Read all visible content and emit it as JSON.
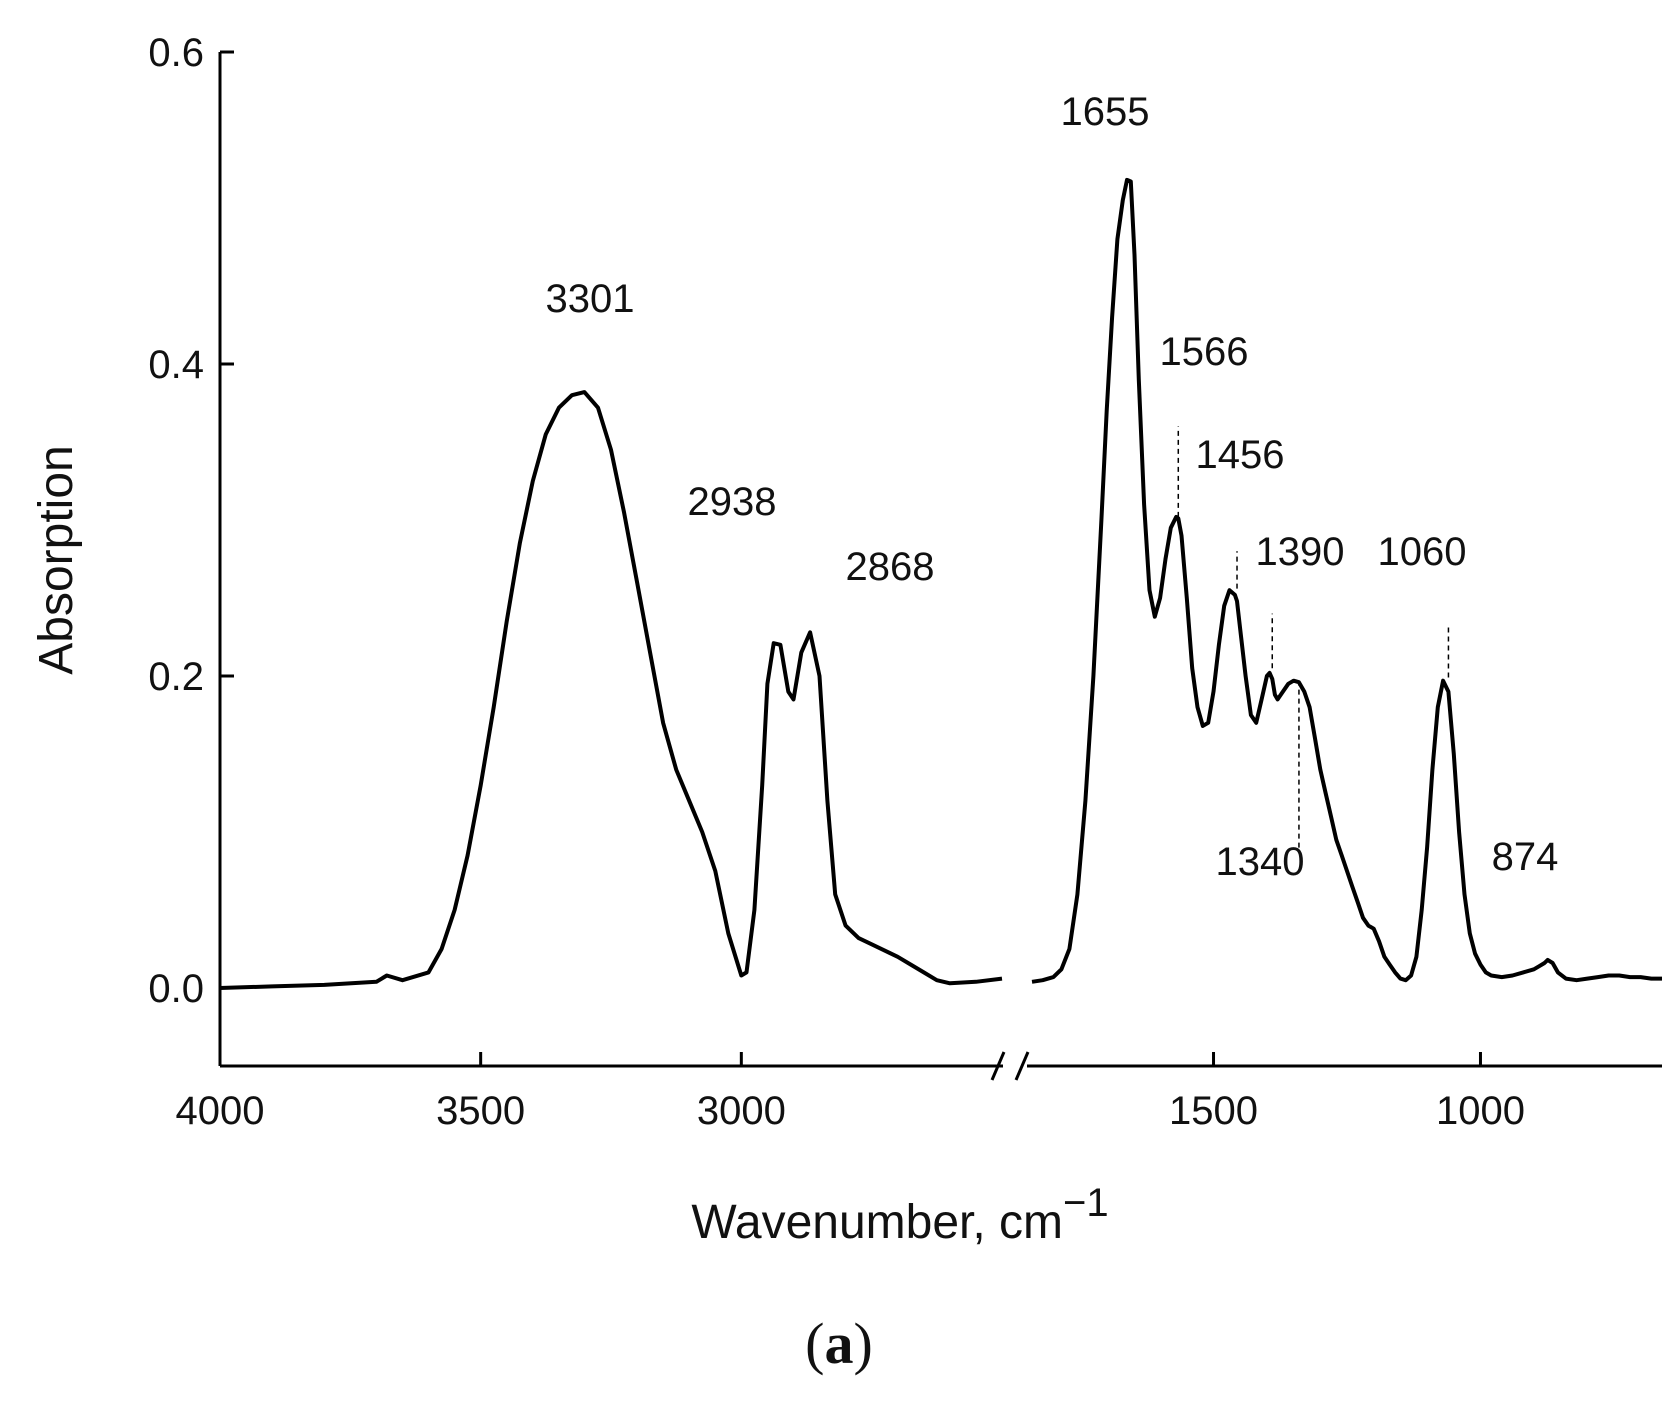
{
  "chart_data": {
    "type": "line",
    "xlabel": "Wavenumber, cm",
    "xlabel_superscript": "−1",
    "ylabel": "Absorption",
    "ylim": [
      -0.05,
      0.6
    ],
    "y_ticks": [
      "0.0",
      "0.2",
      "0.4",
      "0.6"
    ],
    "x_axis_broken": true,
    "segments": [
      {
        "xlim": [
          4000,
          2500
        ],
        "x_ticks": [
          4000,
          3500,
          3000
        ]
      },
      {
        "xlim": [
          1840,
          660
        ],
        "x_ticks": [
          1500,
          1000
        ]
      }
    ],
    "grid": false,
    "series": [
      {
        "color": "#000000",
        "segments": [
          {
            "x": [
              4000,
              3900,
              3800,
              3700,
              3680,
              3650,
              3600,
              3575,
              3550,
              3525,
              3500,
              3475,
              3450,
              3425,
              3400,
              3375,
              3350,
              3325,
              3301,
              3275,
              3250,
              3225,
              3200,
              3175,
              3150,
              3125,
              3100,
              3075,
              3050,
              3025,
              3000,
              2990,
              2975,
              2960,
              2950,
              2938,
              2925,
              2910,
              2900,
              2885,
              2868,
              2850,
              2835,
              2820,
              2800,
              2775,
              2750,
              2725,
              2700,
              2675,
              2650,
              2625,
              2600,
              2550,
              2500
            ],
            "y": [
              0.0,
              0.001,
              0.002,
              0.004,
              0.008,
              0.005,
              0.01,
              0.025,
              0.05,
              0.085,
              0.13,
              0.18,
              0.235,
              0.285,
              0.325,
              0.355,
              0.372,
              0.38,
              0.382,
              0.372,
              0.345,
              0.305,
              0.26,
              0.215,
              0.17,
              0.14,
              0.12,
              0.1,
              0.075,
              0.035,
              0.008,
              0.01,
              0.05,
              0.13,
              0.195,
              0.221,
              0.22,
              0.19,
              0.185,
              0.215,
              0.228,
              0.2,
              0.12,
              0.06,
              0.04,
              0.032,
              0.028,
              0.024,
              0.02,
              0.015,
              0.01,
              0.005,
              0.003,
              0.004,
              0.006
            ]
          },
          {
            "x": [
              1840,
              1820,
              1800,
              1785,
              1770,
              1755,
              1740,
              1725,
              1710,
              1700,
              1690,
              1680,
              1670,
              1662,
              1655,
              1648,
              1640,
              1630,
              1620,
              1610,
              1600,
              1590,
              1580,
              1570,
              1566,
              1560,
              1550,
              1540,
              1530,
              1520,
              1510,
              1500,
              1490,
              1480,
              1470,
              1460,
              1456,
              1450,
              1440,
              1430,
              1420,
              1410,
              1400,
              1395,
              1390,
              1385,
              1380,
              1370,
              1360,
              1350,
              1340,
              1330,
              1320,
              1310,
              1300,
              1290,
              1280,
              1270,
              1260,
              1250,
              1240,
              1230,
              1220,
              1210,
              1200,
              1190,
              1180,
              1170,
              1160,
              1150,
              1140,
              1130,
              1120,
              1110,
              1100,
              1090,
              1080,
              1070,
              1060,
              1050,
              1040,
              1030,
              1020,
              1010,
              1000,
              990,
              980,
              960,
              940,
              920,
              900,
              890,
              880,
              874,
              865,
              855,
              840,
              820,
              800,
              780,
              760,
              740,
              720,
              700,
              680,
              660
            ],
            "y": [
              0.004,
              0.005,
              0.007,
              0.012,
              0.025,
              0.06,
              0.12,
              0.2,
              0.3,
              0.37,
              0.43,
              0.48,
              0.505,
              0.518,
              0.517,
              0.47,
              0.39,
              0.31,
              0.255,
              0.238,
              0.25,
              0.275,
              0.295,
              0.302,
              0.301,
              0.29,
              0.25,
              0.205,
              0.18,
              0.168,
              0.17,
              0.19,
              0.22,
              0.245,
              0.255,
              0.252,
              0.248,
              0.23,
              0.2,
              0.175,
              0.17,
              0.185,
              0.2,
              0.202,
              0.198,
              0.188,
              0.185,
              0.19,
              0.195,
              0.197,
              0.196,
              0.19,
              0.18,
              0.16,
              0.14,
              0.125,
              0.11,
              0.095,
              0.085,
              0.075,
              0.065,
              0.055,
              0.045,
              0.04,
              0.038,
              0.03,
              0.02,
              0.015,
              0.01,
              0.006,
              0.005,
              0.008,
              0.02,
              0.05,
              0.09,
              0.14,
              0.18,
              0.197,
              0.19,
              0.15,
              0.1,
              0.06,
              0.035,
              0.022,
              0.015,
              0.01,
              0.008,
              0.007,
              0.008,
              0.01,
              0.012,
              0.014,
              0.016,
              0.018,
              0.016,
              0.01,
              0.006,
              0.005,
              0.006,
              0.007,
              0.008,
              0.008,
              0.007,
              0.007,
              0.006,
              0.006
            ]
          }
        ]
      }
    ],
    "annotations": [
      {
        "text": "3301",
        "x": 3301
      },
      {
        "text": "2938",
        "x": 2938
      },
      {
        "text": "2868",
        "x": 2868
      },
      {
        "text": "1655",
        "x": 1655
      },
      {
        "text": "1566",
        "x": 1566,
        "dashed_line": true
      },
      {
        "text": "1456",
        "x": 1456,
        "dashed_line": true
      },
      {
        "text": "1390",
        "x": 1390,
        "dashed_line": true
      },
      {
        "text": "1340",
        "x": 1340,
        "dashed_line": true
      },
      {
        "text": "1060",
        "x": 1060,
        "dashed_line": true
      },
      {
        "text": "874",
        "x": 874
      }
    ]
  },
  "panel_label": "a"
}
